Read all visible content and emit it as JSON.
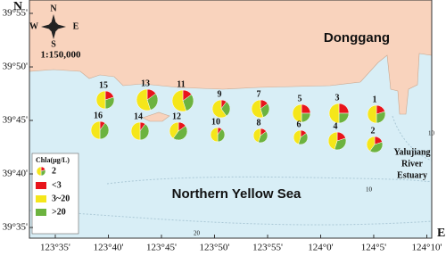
{
  "chart_data": {
    "type": "pie",
    "axis_letters": {
      "lat": "N",
      "lon": "E"
    },
    "xlim": [
      123.5427,
      124.1744
    ],
    "ylim": [
      39.5667,
      39.9375
    ],
    "xticks": [
      {
        "value": 123.5833,
        "label": "123°35'"
      },
      {
        "value": 123.6667,
        "label": "123°40'"
      },
      {
        "value": 123.75,
        "label": "123°45'"
      },
      {
        "value": 123.8333,
        "label": "123°50'"
      },
      {
        "value": 123.9167,
        "label": "123°55'"
      },
      {
        "value": 124.0,
        "label": "124°0'"
      },
      {
        "value": 124.0833,
        "label": "124°5'"
      },
      {
        "value": 124.1667,
        "label": "124°10'"
      }
    ],
    "yticks": [
      {
        "value": 39.9167,
        "label": "39°55'"
      },
      {
        "value": 39.8333,
        "label": "39°50'"
      },
      {
        "value": 39.75,
        "label": "39°45'"
      },
      {
        "value": 39.6667,
        "label": "39°40'"
      },
      {
        "value": 39.5833,
        "label": "39°35'"
      }
    ],
    "compass": {
      "n": "N",
      "e": "E",
      "s": "S",
      "w": "W"
    },
    "scale": "1:150,000",
    "place_labels": [
      "Donggang",
      "Northern Yellow Sea"
    ],
    "estuary_label": [
      "Yalujiang",
      "River",
      "Estuary"
    ],
    "contour_labels": [
      10,
      10,
      20
    ],
    "legend_title": "Chla(μg/L)",
    "legend_sample": "2",
    "categories": [
      "15",
      "13",
      "11",
      "9",
      "7",
      "5",
      "3",
      "1",
      "16",
      "14",
      "12",
      "10",
      "8",
      "6",
      "4",
      "2"
    ],
    "series": [
      {
        "name": "<3",
        "color": "#e8141b",
        "values": [
          20,
          15,
          15,
          10,
          15,
          25,
          25,
          20,
          10,
          10,
          15,
          10,
          15,
          15,
          20,
          20
        ]
      },
      {
        "name": "3~20",
        "color": "#f5e61a",
        "values": [
          50,
          55,
          55,
          60,
          55,
          50,
          50,
          50,
          50,
          50,
          40,
          50,
          45,
          45,
          45,
          40
        ]
      },
      {
        "name": ">20",
        "color": "#6cb33f",
        "values": [
          30,
          30,
          30,
          30,
          30,
          25,
          25,
          30,
          40,
          40,
          45,
          40,
          40,
          40,
          35,
          40
        ]
      }
    ]
  }
}
